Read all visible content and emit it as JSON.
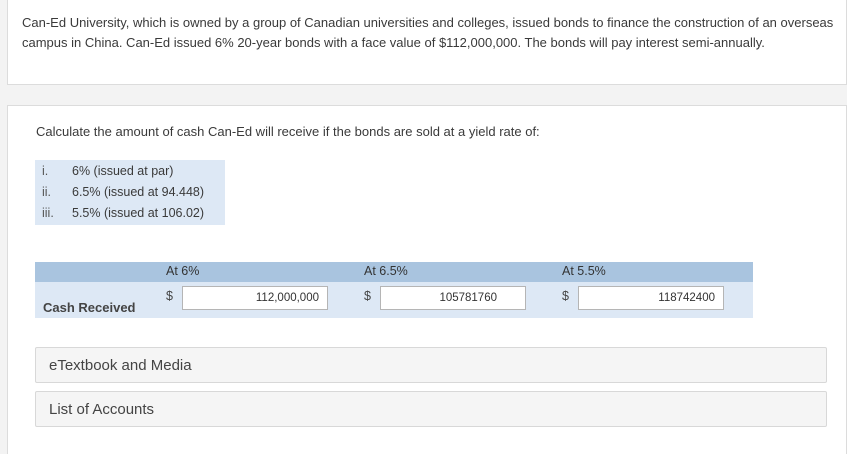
{
  "problem": {
    "text": "Can-Ed University, which is owned by a group of Canadian universities and colleges, issued bonds to finance the construction of an overseas campus in China. Can-Ed issued 6% 20-year bonds with a face value of $112,000,000. The bonds will pay interest semi-annually."
  },
  "question": {
    "prompt": "Calculate the amount of cash Can-Ed will receive if the bonds are sold at a yield rate of:",
    "options": [
      {
        "num": "i.",
        "text": "6% (issued at par)"
      },
      {
        "num": "ii.",
        "text": "6.5% (issued at 94.448)"
      },
      {
        "num": "iii.",
        "text": "5.5% (issued at 106.02)"
      }
    ]
  },
  "table": {
    "columns": [
      "At 6%",
      "At 6.5%",
      "At 5.5%"
    ],
    "row_label": "Cash Received",
    "currency": "$",
    "values": [
      "112,000,000",
      "105781760",
      "118742400"
    ]
  },
  "links": {
    "etextbook": "eTextbook and Media",
    "accounts": "List of Accounts"
  }
}
